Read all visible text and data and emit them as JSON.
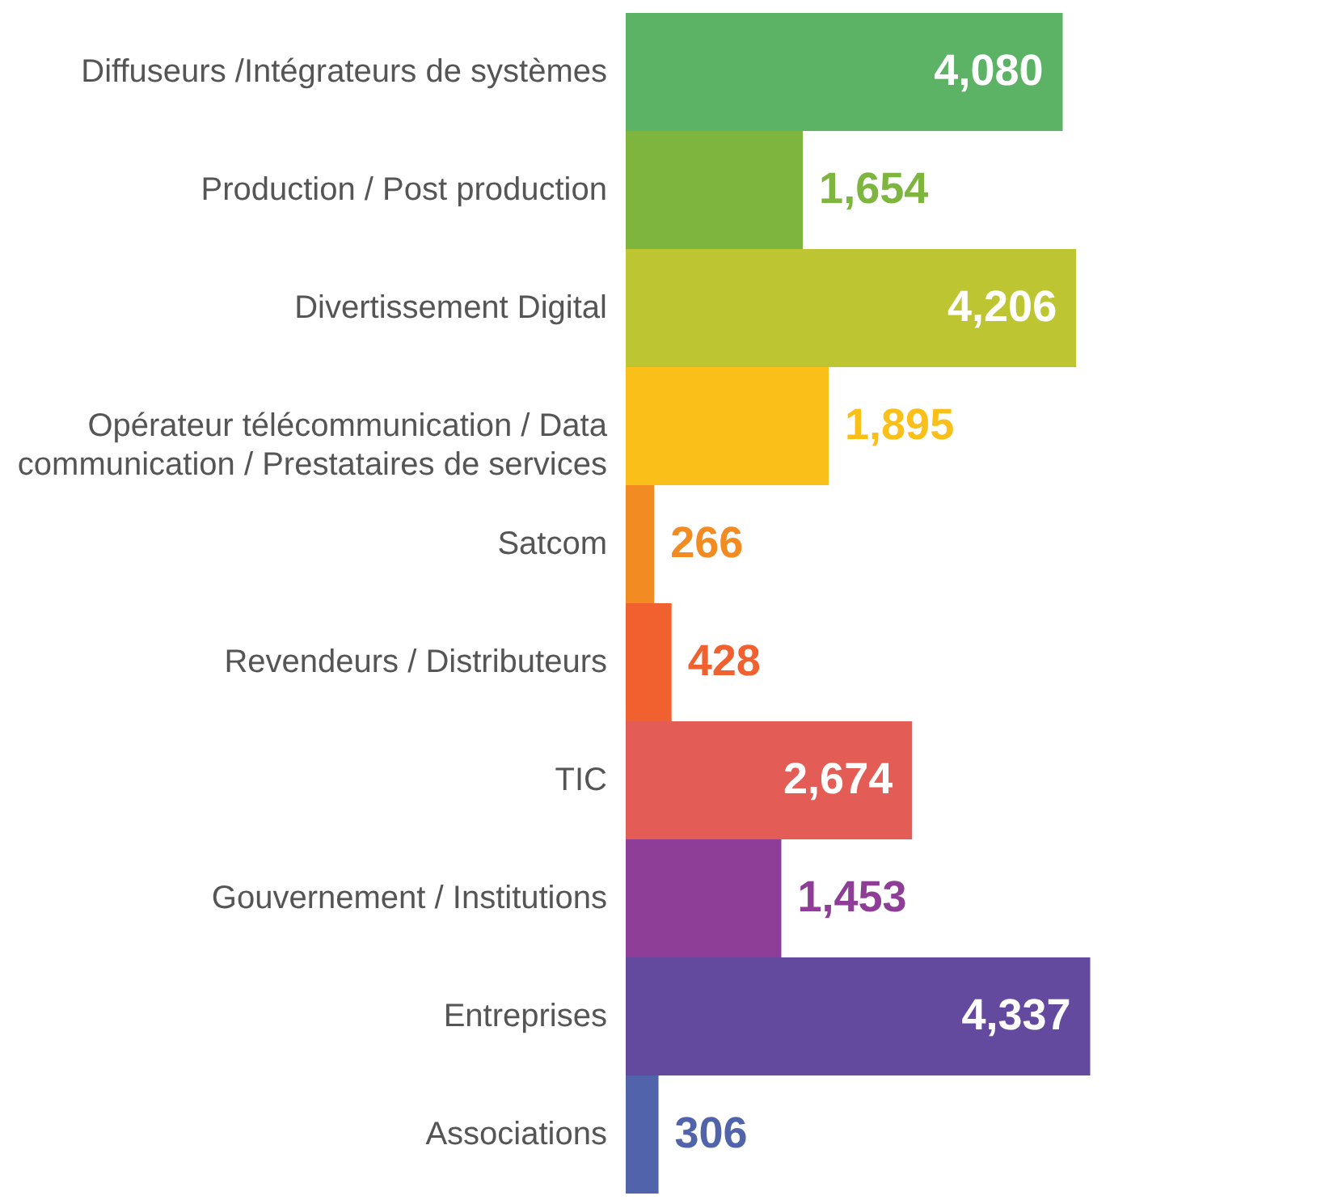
{
  "chart_data": {
    "type": "bar",
    "orientation": "horizontal",
    "categories": [
      "Diffuseurs /Intégrateurs de systèmes",
      "Production / Post production",
      "Divertissement Digital",
      "Opérateur télécommunication / Data communication / Prestataires de services",
      "Satcom",
      "Revendeurs / Distributeurs",
      "TIC",
      "Gouvernement / Institutions",
      "Entreprises",
      "Associations"
    ],
    "values": [
      4080,
      1654,
      4206,
      1895,
      266,
      428,
      2674,
      1453,
      4337,
      306
    ],
    "value_labels": [
      "4,080",
      "1,654",
      "4,206",
      "1,895",
      "266",
      "428",
      "2,674",
      "1,453",
      "4,337",
      "306"
    ],
    "colors": [
      "#5cb265",
      "#7db53f",
      "#bec533",
      "#fbbf1a",
      "#f28b22",
      "#f1602f",
      "#e35c55",
      "#8e3e97",
      "#634a9e",
      "#5063ab"
    ]
  }
}
